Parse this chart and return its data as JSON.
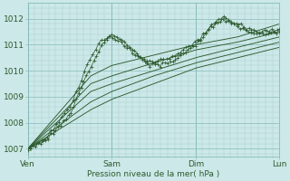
{
  "bg_color": "#cce8e8",
  "grid_color": "#aacccc",
  "line_color": "#2d5a2d",
  "ylabel": "Pression niveau de la mer( hPa )",
  "yticks": [
    1007,
    1008,
    1009,
    1010,
    1011,
    1012
  ],
  "ylim": [
    1006.7,
    1012.6
  ],
  "xlim": [
    0,
    72
  ],
  "xtick_positions": [
    0,
    24,
    48,
    72
  ],
  "xtick_labels": [
    "Ven",
    "Sam",
    "Dim",
    "Lun"
  ],
  "label_fontsize": 6.5,
  "tick_fontsize": 6.5
}
